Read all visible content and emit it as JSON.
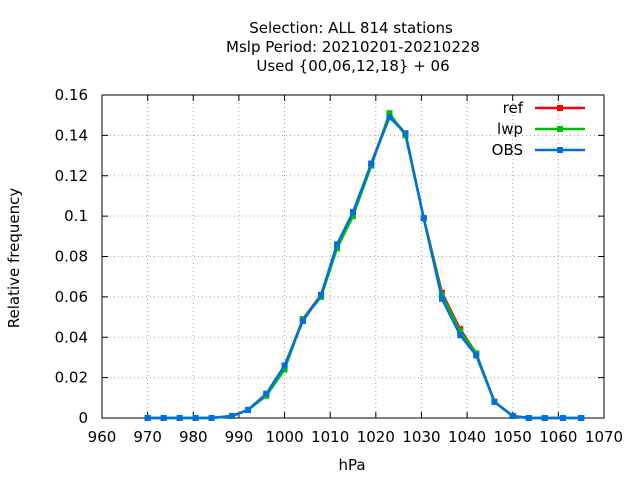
{
  "chart_data": {
    "type": "line",
    "title_lines": [
      "Selection: ALL    814 stations",
      "Mslp  Period: 20210201-20210228",
      "Used {00,06,12,18} + 06"
    ],
    "xlabel": "hPa",
    "ylabel": "Relative frequency",
    "xlim": [
      960,
      1070
    ],
    "ylim": [
      0,
      0.16
    ],
    "xticks": [
      960,
      970,
      980,
      990,
      1000,
      1010,
      1020,
      1030,
      1040,
      1050,
      1060,
      1070
    ],
    "yticks": [
      0,
      0.02,
      0.04,
      0.06,
      0.08,
      0.1,
      0.12,
      0.14,
      0.16
    ],
    "ytick_labels": [
      "0",
      "0.02",
      "0.04",
      "0.06",
      "0.08",
      "0.1",
      "0.12",
      "0.14",
      "0.16"
    ],
    "grid": true,
    "legend_position": "top-right",
    "x": [
      970,
      973.5,
      977,
      980.5,
      984,
      988.5,
      992,
      996,
      1000,
      1004,
      1008,
      1011.5,
      1015,
      1019,
      1023,
      1026.5,
      1030.5,
      1034.5,
      1038.5,
      1042,
      1046,
      1050,
      1053.5,
      1057,
      1061,
      1065
    ],
    "series": [
      {
        "name": "ref",
        "color": "#ff0000",
        "values": [
          0,
          0,
          0,
          0,
          0,
          0.001,
          0.004,
          0.012,
          0.025,
          0.049,
          0.061,
          0.085,
          0.101,
          0.126,
          0.15,
          0.141,
          0.099,
          0.062,
          0.044,
          0.032,
          0.008,
          0.001,
          0,
          0,
          0,
          0
        ]
      },
      {
        "name": "lwp",
        "color": "#00c000",
        "values": [
          0,
          0,
          0,
          0,
          0,
          0.001,
          0.004,
          0.011,
          0.024,
          0.049,
          0.06,
          0.084,
          0.1,
          0.125,
          0.151,
          0.14,
          0.099,
          0.061,
          0.043,
          0.032,
          0.008,
          0.001,
          0,
          0,
          0,
          0
        ]
      },
      {
        "name": "OBS",
        "color": "#0070e0",
        "values": [
          0,
          0,
          0,
          0,
          0,
          0.001,
          0.004,
          0.012,
          0.026,
          0.048,
          0.061,
          0.086,
          0.102,
          0.126,
          0.149,
          0.141,
          0.099,
          0.059,
          0.041,
          0.031,
          0.008,
          0.001,
          0,
          0,
          0,
          0
        ]
      }
    ]
  }
}
